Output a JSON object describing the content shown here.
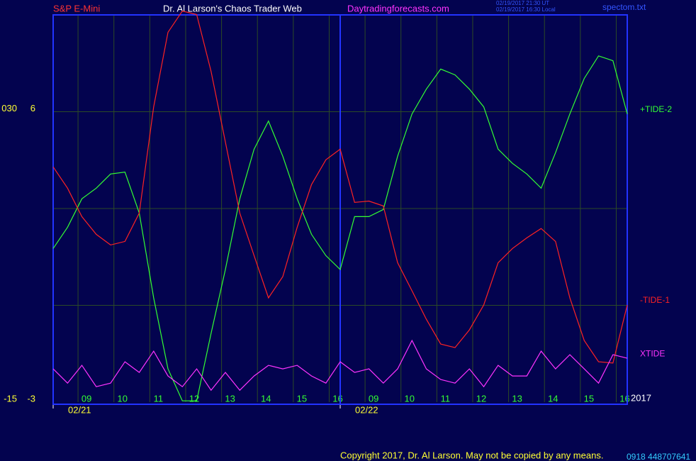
{
  "chart_data": {
    "type": "line",
    "header": {
      "instrument": "S&P E-Mini",
      "site": "Dr. Al Larson's Chaos Trader Web",
      "url": "Daytradingforecasts.com",
      "time_ut": "02/19/2017 21:30 UT",
      "time_local": "02/19/2017 16:30 Local",
      "file": "spectom.txt"
    },
    "footer": {
      "copyright": "Copyright 2017, Dr. Al Larson. May not be copied by any means.",
      "id": "0918 448707641"
    },
    "year": "2017",
    "x": [
      0,
      0.4,
      0.8,
      1.2,
      1.6,
      2,
      2.4,
      2.8,
      3.2,
      3.6,
      4,
      4.4,
      4.8,
      5.2,
      5.6,
      6,
      6.4,
      6.8,
      7.2,
      7.6,
      8,
      8.4,
      8.8,
      9.2,
      9.6,
      10,
      10.4,
      10.8,
      11.2,
      11.6,
      12,
      12.4,
      12.8,
      13.2,
      13.6,
      14,
      14.4,
      14.8,
      15.2,
      15.6,
      16
    ],
    "xlim": [
      0,
      16
    ],
    "xticks": [
      {
        "value": 0.93,
        "label": "09"
      },
      {
        "value": 1.93,
        "label": "10"
      },
      {
        "value": 2.93,
        "label": "11"
      },
      {
        "value": 3.93,
        "label": "12"
      },
      {
        "value": 4.93,
        "label": "13"
      },
      {
        "value": 5.93,
        "label": "14"
      },
      {
        "value": 6.93,
        "label": "15"
      },
      {
        "value": 7.93,
        "label": "16"
      },
      {
        "value": 8.93,
        "label": "09"
      },
      {
        "value": 9.93,
        "label": "10"
      },
      {
        "value": 10.93,
        "label": "11"
      },
      {
        "value": 11.93,
        "label": "12"
      },
      {
        "value": 12.93,
        "label": "13"
      },
      {
        "value": 13.93,
        "label": "14"
      },
      {
        "value": 14.93,
        "label": "15"
      },
      {
        "value": 15.93,
        "label": "16"
      }
    ],
    "date_ticks": [
      {
        "value": 0,
        "label": "02/21"
      },
      {
        "value": 8,
        "label": "02/22"
      }
    ],
    "ylim": [
      -3,
      9
    ],
    "yticks": [
      -3,
      6
    ],
    "y2lim": [
      -15,
      45
    ],
    "y2ticks": [
      -15,
      {
        "value": 30,
        "label": "030"
      }
    ],
    "ygrid": [
      0,
      3,
      6
    ],
    "grid": true,
    "series": [
      {
        "name": "+TIDE-2",
        "color": "#33ff33",
        "values": [
          1.76,
          2.42,
          3.3,
          3.63,
          4.07,
          4.13,
          2.86,
          0.23,
          -1.97,
          -2.96,
          -2.96,
          -0.87,
          1.11,
          3.3,
          4.84,
          5.71,
          4.62,
          3.3,
          2.2,
          1.54,
          1.11,
          2.75,
          2.75,
          2.97,
          4.62,
          5.93,
          6.7,
          7.32,
          7.14,
          6.7,
          6.15,
          4.84,
          4.4,
          4.07,
          3.63,
          4.73,
          5.93,
          7.03,
          7.73,
          7.58,
          5.93
        ]
      },
      {
        "name": "-TIDE-1",
        "color": "#ff2222",
        "values": [
          4.29,
          3.63,
          2.75,
          2.2,
          1.87,
          1.98,
          2.86,
          6.15,
          8.46,
          9.12,
          9.01,
          7.25,
          5.06,
          2.86,
          1.54,
          0.23,
          0.89,
          2.42,
          3.74,
          4.51,
          4.84,
          3.19,
          3.23,
          3.08,
          1.32,
          0.45,
          -0.43,
          -1.2,
          -1.31,
          -0.76,
          0.01,
          1.32,
          1.76,
          2.09,
          2.38,
          1.98,
          0.23,
          -1.09,
          -1.75,
          -1.79,
          0.01
        ]
      },
      {
        "name": "XTIDE",
        "color": "#ff33ff",
        "values": [
          -1.97,
          -2.41,
          -1.86,
          -2.52,
          -2.41,
          -1.75,
          -2.08,
          -1.42,
          -2.19,
          -2.52,
          -1.97,
          -2.63,
          -2.08,
          -2.63,
          -2.19,
          -1.86,
          -1.97,
          -1.86,
          -2.19,
          -2.41,
          -1.75,
          -2.08,
          -1.97,
          -2.41,
          -1.97,
          -1.09,
          -1.97,
          -2.3,
          -2.41,
          -1.97,
          -2.52,
          -1.86,
          -2.19,
          -2.19,
          -1.42,
          -1.97,
          -1.53,
          -1.97,
          -2.41,
          -1.53,
          -1.64
        ]
      }
    ]
  }
}
